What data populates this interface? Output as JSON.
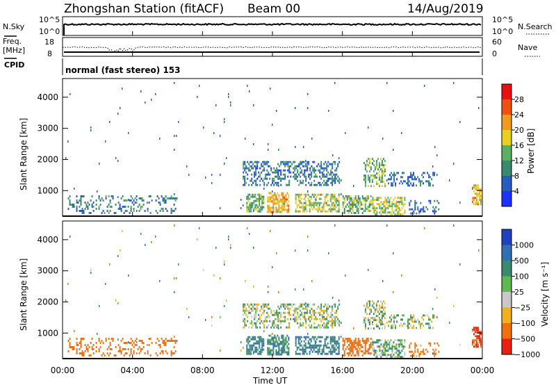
{
  "header": {
    "station": "Zhongshan Station (fitACF)",
    "beam": "Beam 00",
    "date": "14/Aug/2019"
  },
  "sky_panel": {
    "left_label": "N.Sky",
    "right_label": "N.Search",
    "left_ticks": [
      "10^5",
      "10^0"
    ],
    "right_ticks": [
      "10^5",
      "10^0"
    ]
  },
  "freq_panel": {
    "left_label_1": "Freq.",
    "left_label_2": "[MHz]",
    "cpid_label": "CPID",
    "right_label": "Nave",
    "left_ticks": [
      "18",
      "8"
    ],
    "right_ticks": [
      "60",
      "0"
    ]
  },
  "cpid_text": "normal (fast stereo) 153",
  "x_axis": {
    "ticks": [
      "00:00",
      "04:00",
      "08:00",
      "12:00",
      "16:00",
      "20:00",
      "00:00"
    ],
    "label": "Time UT"
  },
  "power_panel": {
    "ylabel": "Slant Range [km]",
    "yticks": [
      "1000",
      "2000",
      "3000",
      "4000"
    ],
    "colorbar_label": "Power [dB]",
    "colorbar_ticks": [
      "4",
      "8",
      "12",
      "16",
      "20",
      "24",
      "28"
    ],
    "colors": [
      "#1e32ff",
      "#2a5cc0",
      "#3a8a70",
      "#5ab060",
      "#e8d020",
      "#f09a20",
      "#f05010",
      "#e81010"
    ]
  },
  "velocity_panel": {
    "ylabel": "Slant Range [km]",
    "yticks": [
      "1000",
      "2000",
      "3000",
      "4000"
    ],
    "colorbar_label": "Velocity [m s⁻¹]",
    "colorbar_ticks": [
      "1000",
      "500",
      "100",
      "25",
      "−25",
      "−100",
      "−500",
      "−1000"
    ],
    "colors": [
      "#2040c0",
      "#3070b0",
      "#3a8a70",
      "#60b850",
      "#c8c8c8",
      "#f0b020",
      "#f07010",
      "#e82010",
      "#e01010"
    ]
  },
  "chart_data": {
    "type": "heatmap",
    "title": "Zhongshan Station (fitACF)  Beam 00  14/Aug/2019",
    "xlabel": "Time UT",
    "ylabel": "Slant Range [km]",
    "xlim_hours": [
      0,
      24
    ],
    "ylim_km": [
      180,
      4600
    ],
    "grid": false,
    "echo_regions": [
      {
        "t0": 0.3,
        "t1": 6.5,
        "r0": 250,
        "r1": 850,
        "density": 0.25,
        "power": 9,
        "velocity": -200
      },
      {
        "t0": 10.5,
        "t1": 11.5,
        "r0": 300,
        "r1": 900,
        "density": 0.6,
        "power": 13,
        "velocity": 80
      },
      {
        "t0": 11.7,
        "t1": 12.9,
        "r0": 300,
        "r1": 950,
        "density": 0.7,
        "power": 20,
        "velocity": 70
      },
      {
        "t0": 13.3,
        "t1": 15.8,
        "r0": 300,
        "r1": 900,
        "density": 0.6,
        "power": 16,
        "velocity": 90
      },
      {
        "t0": 16.0,
        "t1": 17.6,
        "r0": 250,
        "r1": 850,
        "density": 0.55,
        "power": 14,
        "velocity": -300
      },
      {
        "t0": 17.7,
        "t1": 19.6,
        "r0": 250,
        "r1": 800,
        "density": 0.55,
        "power": 16,
        "velocity": 20
      },
      {
        "t0": 19.8,
        "t1": 21.5,
        "r0": 250,
        "r1": 700,
        "density": 0.3,
        "power": 8,
        "velocity": -150
      },
      {
        "t0": 10.3,
        "t1": 15.8,
        "r0": 1150,
        "r1": 1950,
        "density": 0.4,
        "power": 8,
        "velocity": 0
      },
      {
        "t0": 17.2,
        "t1": 18.4,
        "r0": 1150,
        "r1": 2050,
        "density": 0.45,
        "power": 14,
        "velocity": 0
      },
      {
        "t0": 18.6,
        "t1": 21.3,
        "r0": 1150,
        "r1": 1600,
        "density": 0.35,
        "power": 7,
        "velocity": 0
      },
      {
        "t0": 23.4,
        "t1": 23.9,
        "r0": 550,
        "r1": 1200,
        "density": 0.5,
        "power": 20,
        "velocity": -500
      }
    ],
    "scatter_density": 0.012
  }
}
